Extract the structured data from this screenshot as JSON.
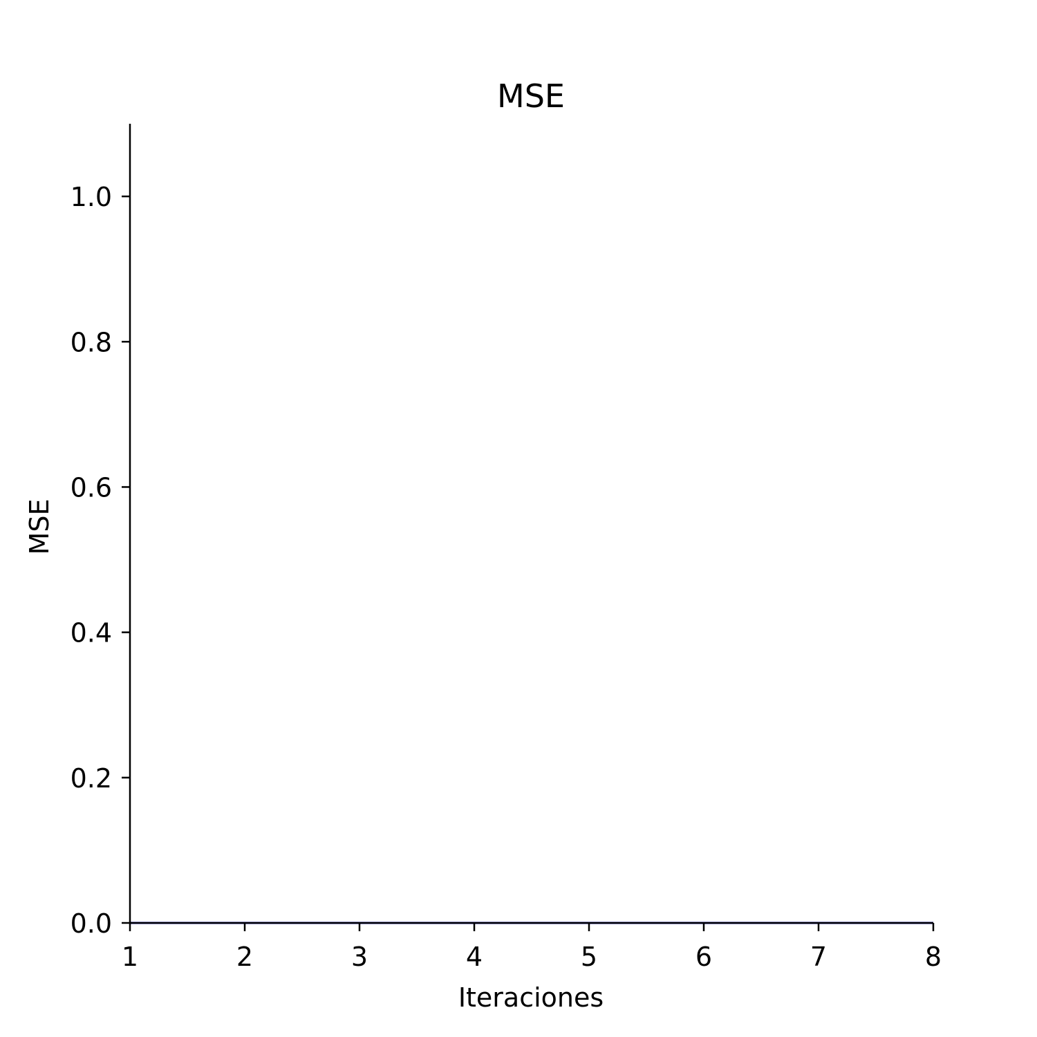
{
  "chart_data": {
    "type": "line",
    "title": "MSE",
    "xlabel": "Iteraciones",
    "ylabel": "MSE",
    "xlim": [
      1,
      8
    ],
    "ylim": [
      0,
      1.1
    ],
    "x_ticks": [
      1,
      2,
      3,
      4,
      5,
      6,
      7,
      8
    ],
    "x_tick_labels": [
      "1",
      "2",
      "3",
      "4",
      "5",
      "6",
      "7",
      "8"
    ],
    "y_ticks": [
      0.0,
      0.2,
      0.4,
      0.6,
      0.8,
      1.0
    ],
    "y_tick_labels": [
      "0.0",
      "0.2",
      "0.4",
      "0.6",
      "0.8",
      "1.0"
    ],
    "grid": false,
    "series": [
      {
        "color": "#0000cc",
        "x": [
          1,
          2,
          3,
          4,
          5,
          6,
          7,
          8
        ],
        "y": [
          0,
          0,
          0,
          0,
          0,
          0,
          0,
          0
        ]
      }
    ]
  }
}
